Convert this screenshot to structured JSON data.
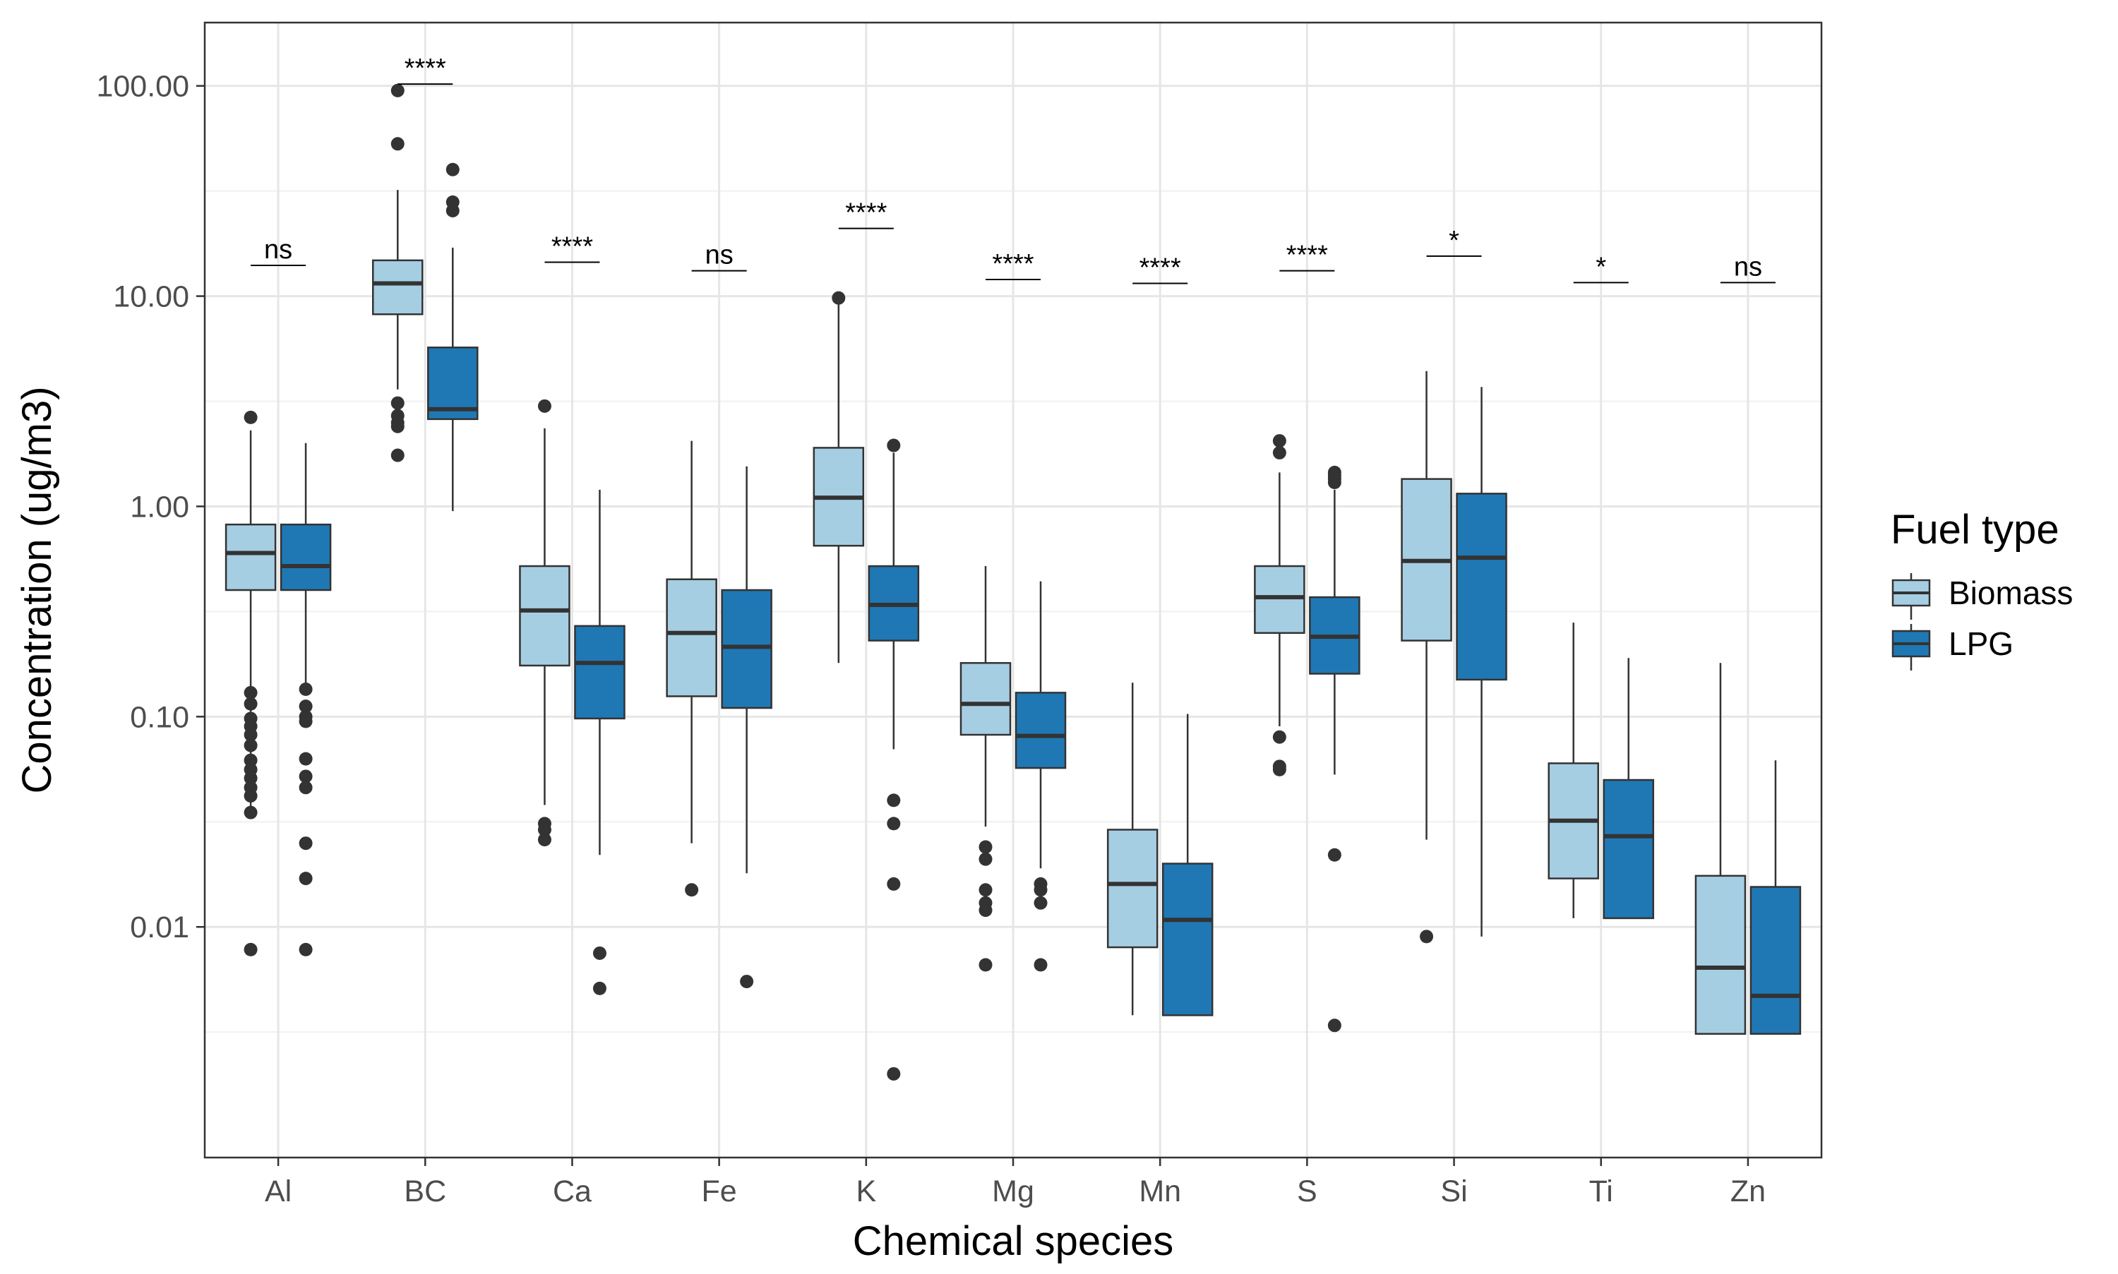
{
  "chart_data": {
    "type": "box",
    "xlabel": "Chemical species",
    "ylabel": "Concentration (ug/m3)",
    "yscale": "log10",
    "ylim": [
      0.0008,
      200
    ],
    "y_ticks": [
      {
        "value": 0.01,
        "label": "0.01"
      },
      {
        "value": 0.1,
        "label": "0.10"
      },
      {
        "value": 1,
        "label": "1.00"
      },
      {
        "value": 10,
        "label": "10.00"
      },
      {
        "value": 100,
        "label": "100.00"
      }
    ],
    "grid": true,
    "legend": {
      "title": "Fuel type",
      "position": "right"
    },
    "categories": [
      "Al",
      "BC",
      "Ca",
      "Fe",
      "K",
      "Mg",
      "Mn",
      "S",
      "Si",
      "Ti",
      "Zn"
    ],
    "series": [
      {
        "name": "Biomass",
        "color": "#a6cee3",
        "boxes": [
          {
            "whisker_low": 0.035,
            "q1": 0.4,
            "median": 0.6,
            "q3": 0.82,
            "whisker_high": 2.3,
            "outliers": [
              2.65,
              0.13,
              0.115,
              0.098,
              0.09,
              0.082,
              0.073,
              0.062,
              0.056,
              0.051,
              0.046,
              0.042,
              0.035,
              0.0078
            ]
          },
          {
            "whisker_low": 3.6,
            "q1": 8.2,
            "median": 11.5,
            "q3": 14.8,
            "whisker_high": 32,
            "outliers": [
              95,
              53,
              3.1,
              2.7,
              2.5,
              2.4,
              1.75
            ]
          },
          {
            "whisker_low": 0.038,
            "q1": 0.175,
            "median": 0.32,
            "q3": 0.52,
            "whisker_high": 2.35,
            "outliers": [
              3.0,
              0.031,
              0.029,
              0.026
            ]
          },
          {
            "whisker_low": 0.025,
            "q1": 0.125,
            "median": 0.25,
            "q3": 0.45,
            "whisker_high": 2.05,
            "outliers": [
              0.015
            ]
          },
          {
            "whisker_low": 0.18,
            "q1": 0.65,
            "median": 1.1,
            "q3": 1.9,
            "whisker_high": 9.5,
            "outliers": [
              9.8
            ]
          },
          {
            "whisker_low": 0.03,
            "q1": 0.082,
            "median": 0.115,
            "q3": 0.18,
            "whisker_high": 0.52,
            "outliers": [
              0.024,
              0.021,
              0.015,
              0.013,
              0.012,
              0.0066
            ]
          },
          {
            "whisker_low": 0.0038,
            "q1": 0.008,
            "median": 0.016,
            "q3": 0.029,
            "whisker_high": 0.145,
            "outliers": []
          },
          {
            "whisker_low": 0.09,
            "q1": 0.25,
            "median": 0.37,
            "q3": 0.52,
            "whisker_high": 1.45,
            "outliers": [
              2.05,
              1.8,
              0.08,
              0.058,
              0.056
            ]
          },
          {
            "whisker_low": 0.026,
            "q1": 0.23,
            "median": 0.55,
            "q3": 1.35,
            "whisker_high": 4.4,
            "outliers": [
              0.009
            ]
          },
          {
            "whisker_low": 0.011,
            "q1": 0.017,
            "median": 0.032,
            "q3": 0.06,
            "whisker_high": 0.28,
            "outliers": []
          },
          {
            "whisker_low": 0.0031,
            "q1": 0.0031,
            "median": 0.0064,
            "q3": 0.0175,
            "whisker_high": 0.18,
            "outliers": []
          }
        ]
      },
      {
        "name": "LPG",
        "color": "#1f78b4",
        "boxes": [
          {
            "whisker_low": 0.135,
            "q1": 0.4,
            "median": 0.52,
            "q3": 0.82,
            "whisker_high": 2.0,
            "outliers": [
              0.135,
              0.112,
              0.1,
              0.095,
              0.063,
              0.052,
              0.046,
              0.025,
              0.017,
              0.0078
            ]
          },
          {
            "whisker_low": 0.95,
            "q1": 2.6,
            "median": 2.9,
            "q3": 5.7,
            "whisker_high": 17,
            "outliers": [
              40,
              28,
              25.5
            ]
          },
          {
            "whisker_low": 0.022,
            "q1": 0.098,
            "median": 0.18,
            "q3": 0.27,
            "whisker_high": 1.2,
            "outliers": [
              0.0075,
              0.0051
            ]
          },
          {
            "whisker_low": 0.018,
            "q1": 0.11,
            "median": 0.215,
            "q3": 0.4,
            "whisker_high": 1.55,
            "outliers": [
              0.0055
            ]
          },
          {
            "whisker_low": 0.07,
            "q1": 0.23,
            "median": 0.34,
            "q3": 0.52,
            "whisker_high": 1.8,
            "outliers": [
              1.95,
              0.04,
              0.031,
              0.016,
              0.002
            ]
          },
          {
            "whisker_low": 0.019,
            "q1": 0.057,
            "median": 0.081,
            "q3": 0.13,
            "whisker_high": 0.44,
            "outliers": [
              0.016,
              0.015,
              0.013,
              0.0066
            ]
          },
          {
            "whisker_low": 0.0038,
            "q1": 0.0038,
            "median": 0.0108,
            "q3": 0.02,
            "whisker_high": 0.103,
            "outliers": []
          },
          {
            "whisker_low": 0.053,
            "q1": 0.16,
            "median": 0.24,
            "q3": 0.37,
            "whisker_high": 1.2,
            "outliers": [
              1.45,
              1.4,
              1.35,
              1.3,
              0.022,
              0.0034
            ]
          },
          {
            "whisker_low": 0.009,
            "q1": 0.15,
            "median": 0.57,
            "q3": 1.15,
            "whisker_high": 3.7,
            "outliers": []
          },
          {
            "whisker_low": 0.011,
            "q1": 0.011,
            "median": 0.027,
            "q3": 0.05,
            "whisker_high": 0.19,
            "outliers": []
          },
          {
            "whisker_low": 0.0031,
            "q1": 0.0031,
            "median": 0.0047,
            "q3": 0.0155,
            "whisker_high": 0.062,
            "outliers": []
          }
        ]
      }
    ],
    "annotations": [
      {
        "category": "Al",
        "label": "ns",
        "y": 14
      },
      {
        "category": "BC",
        "label": "****",
        "y": 102
      },
      {
        "category": "Ca",
        "label": "****",
        "y": 14.5
      },
      {
        "category": "Fe",
        "label": "ns",
        "y": 13.2
      },
      {
        "category": "K",
        "label": "****",
        "y": 21
      },
      {
        "category": "Mg",
        "label": "****",
        "y": 12
      },
      {
        "category": "Mn",
        "label": "****",
        "y": 11.5
      },
      {
        "category": "S",
        "label": "****",
        "y": 13.2
      },
      {
        "category": "Si",
        "label": "*",
        "y": 15.5
      },
      {
        "category": "Ti",
        "label": "*",
        "y": 11.6
      },
      {
        "category": "Zn",
        "label": "ns",
        "y": 11.6
      }
    ]
  }
}
